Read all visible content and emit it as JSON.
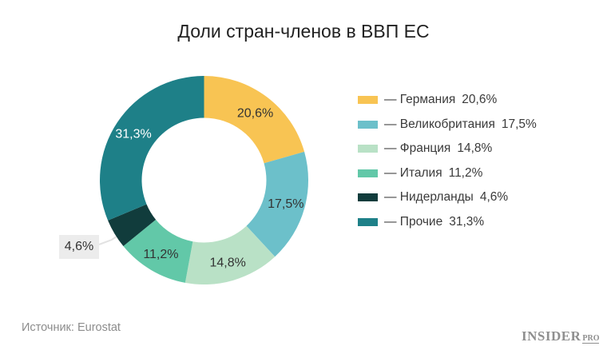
{
  "title": "Доли стран-членов в ВВП ЕС",
  "source": "Источник: Eurostat",
  "logo": {
    "main": "INSIDER",
    "sub": "PRO"
  },
  "callout": "4,6%",
  "legend": [
    {
      "label": "— Германия",
      "value": "20,6%",
      "color": "#f8c453"
    },
    {
      "label": "— Великобритания",
      "value": "17,5%",
      "color": "#6cc0ca"
    },
    {
      "label": "— Франция",
      "value": "14,8%",
      "color": "#b9e1c6"
    },
    {
      "label": "— Италия",
      "value": "11,2%",
      "color": "#62c8a8"
    },
    {
      "label": "— Нидерланды",
      "value": "4,6%",
      "color": "#113c3c"
    },
    {
      "label": "— Прочие",
      "value": "31,3%",
      "color": "#1e8088"
    }
  ],
  "chart_data": {
    "type": "pie",
    "variant": "donut",
    "title": "Доли стран-членов в ВВП ЕС",
    "categories": [
      "Германия",
      "Великобритания",
      "Франция",
      "Италия",
      "Нидерланды",
      "Прочие"
    ],
    "values": [
      20.6,
      17.5,
      14.8,
      11.2,
      4.6,
      31.3
    ],
    "labels": [
      "20,6%",
      "17,5%",
      "14,8%",
      "11,2%",
      "4,6%",
      "31,3%"
    ],
    "colors": [
      "#f8c453",
      "#6cc0ca",
      "#b9e1c6",
      "#62c8a8",
      "#113c3c",
      "#1e8088"
    ],
    "label_colors": [
      "#333333",
      "#333333",
      "#333333",
      "#333333",
      "#333333",
      "#ffffff"
    ],
    "start_angle_deg": 0,
    "direction": "clockwise",
    "legend_position": "right",
    "source": "Eurostat"
  }
}
